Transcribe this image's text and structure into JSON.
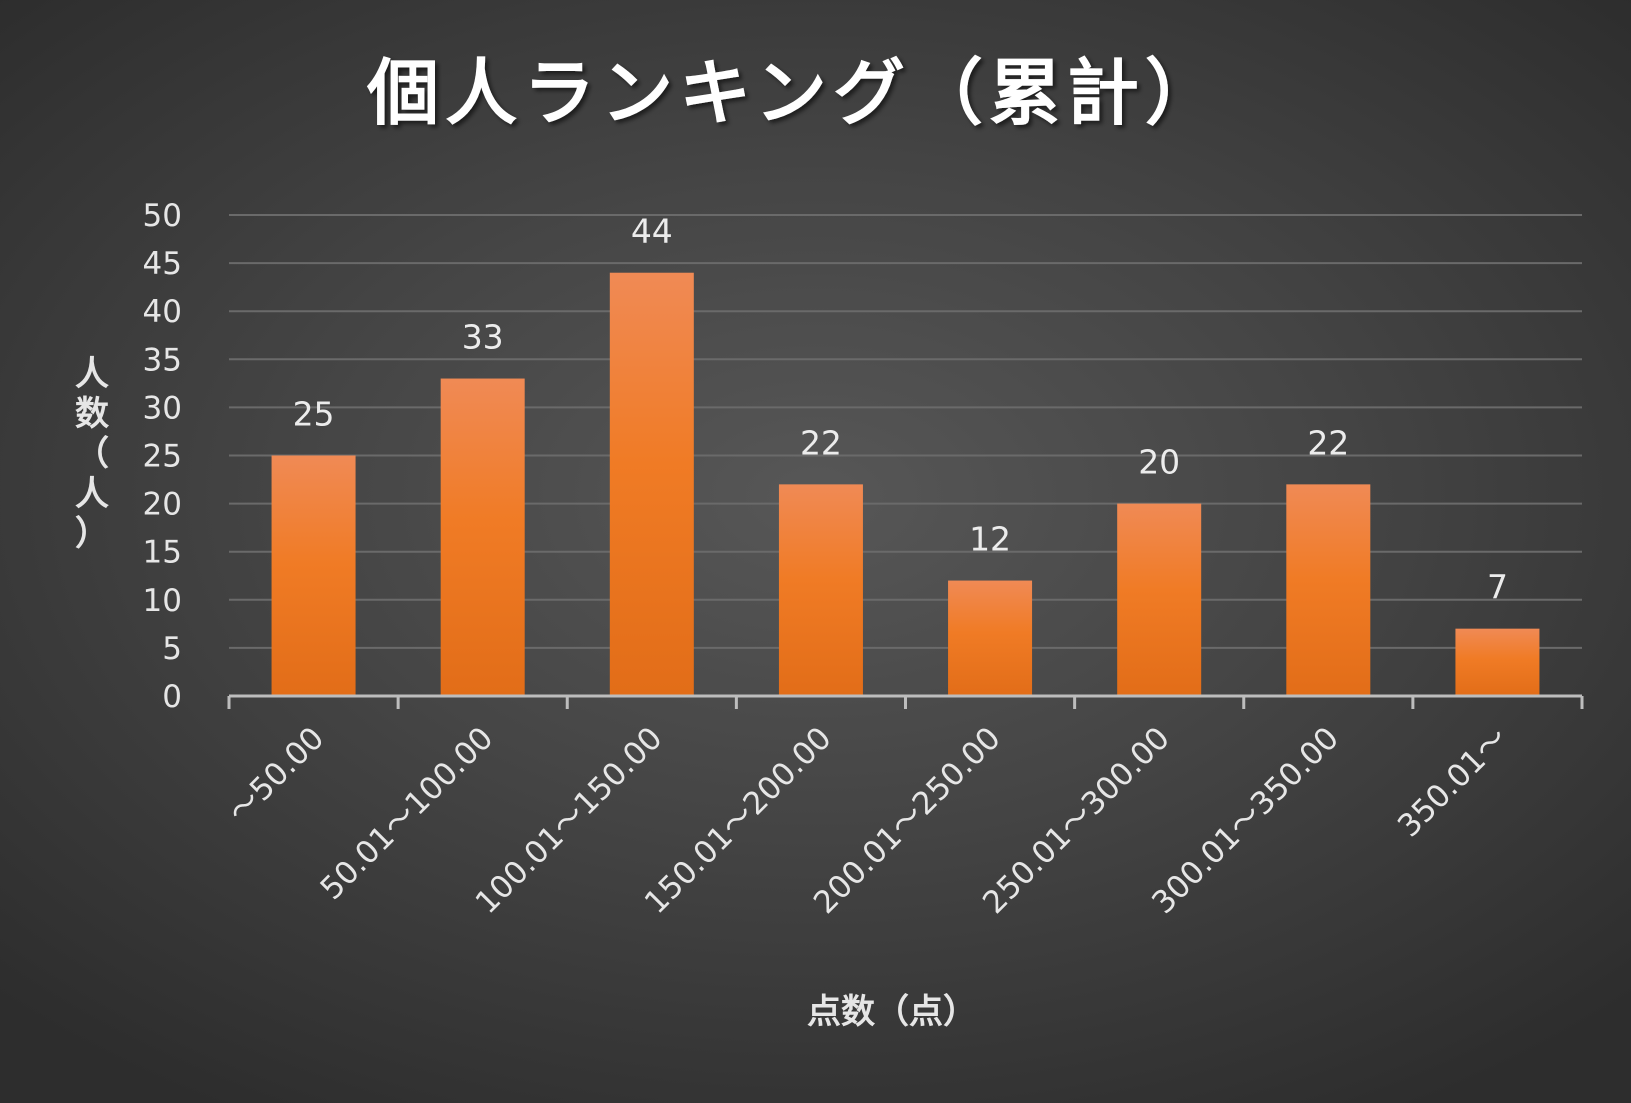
{
  "chart_data": {
    "type": "bar",
    "title": "個人ランキング（累計）",
    "xlabel": "点数（点）",
    "ylabel": "人数（人）",
    "categories": [
      "～50.00",
      "50.01～100.00",
      "100.01～150.00",
      "150.01～200.00",
      "200.01～250.00",
      "250.01～300.00",
      "300.01～350.00",
      "350.01～"
    ],
    "values": [
      25,
      33,
      44,
      22,
      12,
      20,
      22,
      7
    ],
    "ylim": [
      0,
      50
    ],
    "yticks": [
      0,
      5,
      10,
      15,
      20,
      25,
      30,
      35,
      40,
      45,
      50
    ],
    "grid": true,
    "data_labels": true,
    "bar_color": "#f07e2a"
  }
}
